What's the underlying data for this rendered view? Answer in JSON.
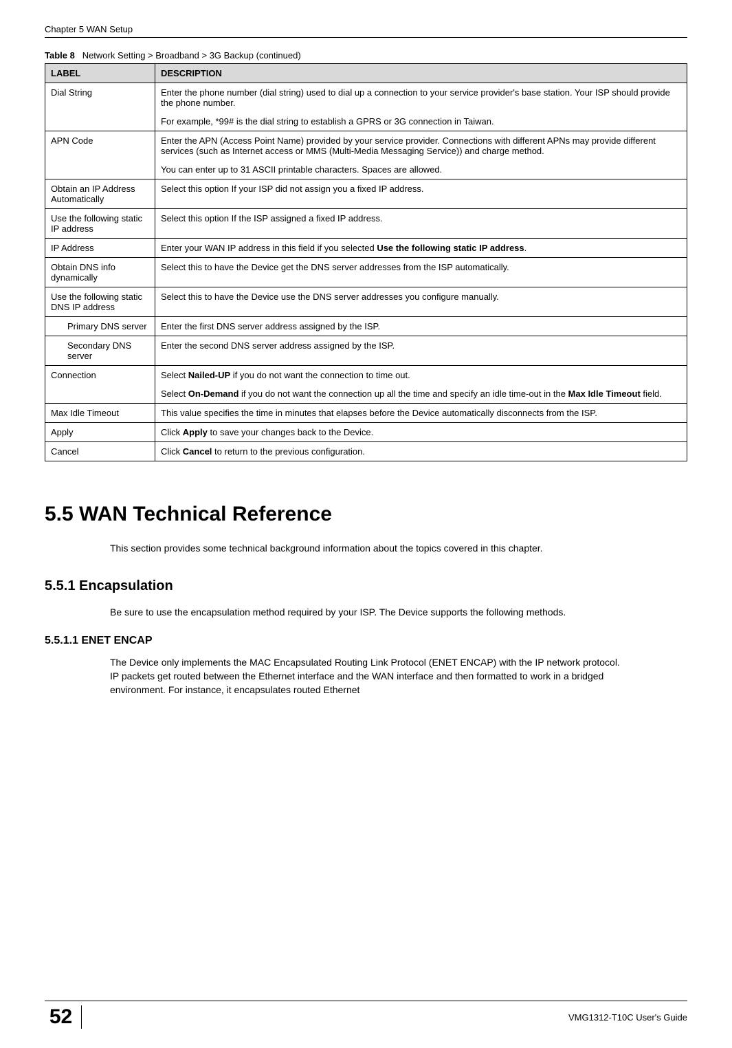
{
  "header": {
    "chapter": "Chapter 5 WAN Setup"
  },
  "table": {
    "caption_prefix": "Table 8",
    "caption": "Network Setting > Broadband > 3G Backup (continued)",
    "col_label": "LABEL",
    "col_desc": "DESCRIPTION",
    "rows": [
      {
        "label": "Dial String",
        "desc": "Enter the phone number (dial string) used to dial up a connection to your service provider's base station. Your ISP should provide the phone number.",
        "desc2": "For example, *99# is the dial string to establish a GPRS or 3G connection in Taiwan."
      },
      {
        "label": "APN Code",
        "desc": "Enter the APN (Access Point Name) provided by your service provider. Connections with different APNs may provide different services (such as Internet access or MMS (Multi-Media Messaging Service)) and charge method.",
        "desc2": "You can enter up to 31 ASCII printable characters. Spaces are allowed."
      },
      {
        "label": "Obtain an IP Address Automatically",
        "desc": "Select this option If your ISP did not assign you a fixed IP address."
      },
      {
        "label": "Use the following static IP address",
        "desc": "Select this option If the ISP assigned a fixed IP address."
      },
      {
        "label": "IP Address",
        "desc_pre": "Enter your WAN IP address in this field if you selected ",
        "desc_bold": "Use the following static IP address",
        "desc_post": "."
      },
      {
        "label": "Obtain DNS info dynamically",
        "desc": "Select this to have the Device get the DNS server addresses from the ISP automatically."
      },
      {
        "label": "Use the following static DNS IP address",
        "desc": "Select this to have the Device use the DNS server addresses you configure manually."
      },
      {
        "label": "Primary DNS server",
        "indent": true,
        "desc": "Enter the first DNS server address assigned by the ISP."
      },
      {
        "label": "Secondary DNS server",
        "indent": true,
        "desc": "Enter the second DNS server address assigned by the ISP."
      },
      {
        "label": " Connection",
        "desc_pre": "Select ",
        "desc_bold": "Nailed-UP",
        "desc_post": " if you do not want the connection to time out.",
        "desc2_pre": "Select ",
        "desc2_bold": "On-Demand",
        "desc2_mid": " if  you do not want the connection up all the time and specify an idle time-out in the ",
        "desc2_bold2": "Max Idle Timeout",
        "desc2_post": " field."
      },
      {
        "label": "Max Idle Timeout",
        "desc": "This value specifies the time in minutes that elapses before the Device automatically disconnects from the ISP."
      },
      {
        "label": "Apply",
        "desc_pre": "Click ",
        "desc_bold": "Apply",
        "desc_post": " to save your changes back to the Device."
      },
      {
        "label": "Cancel",
        "desc_pre": "Click ",
        "desc_bold": "Cancel",
        "desc_post": " to return to the previous configuration."
      }
    ]
  },
  "sections": {
    "h1": "5.5  WAN Technical Reference",
    "h1_para": "This section provides some technical background information about the topics covered in this chapter.",
    "h2": "5.5.1  Encapsulation",
    "h2_para": "Be sure to use the encapsulation method required by your ISP. The Device supports the following methods.",
    "h3": "5.5.1.1  ENET ENCAP",
    "h3_para": "The Device only implements the MAC Encapsulated Routing Link Protocol (ENET ENCAP) with the IP network protocol. IP packets get routed between the Ethernet interface and the WAN interface and then formatted to work in a bridged environment. For instance, it encapsulates routed Ethernet"
  },
  "footer": {
    "page_num": "52",
    "guide": "VMG1312-T10C User's Guide"
  }
}
